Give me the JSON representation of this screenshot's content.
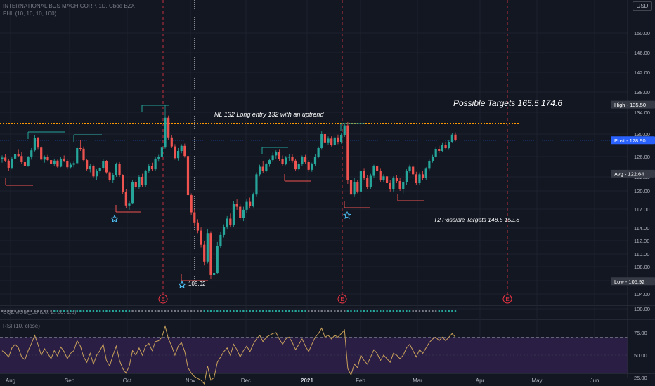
{
  "header": {
    "symbol_line": "INTERNATIONAL BUS MACH CORP, 1D, Cboe BZX",
    "indicator_1": "PHL (10, 10, 10, 100)",
    "indicator_2": "SQZMOM_LB (20, 2, 20, 1.5)",
    "indicator_3": "RSI (10, close)"
  },
  "currency_label": "USD",
  "annotations": {
    "neckline": "NL 132  Long entry 132 with an uptrend",
    "targets_main": "Possible Targets  165.5  174.6",
    "targets_t2": "T2   Possible Targets  148.5   152.8",
    "low_marker": "105.92"
  },
  "earnings_marker": "E",
  "price_tags": {
    "high": {
      "label": "High",
      "value": "135.50"
    },
    "post": {
      "label": "Post",
      "value": "128.90"
    },
    "avg": {
      "label": "Avg",
      "value": "122.64"
    },
    "low": {
      "label": "Low",
      "value": "105.92"
    }
  },
  "colors": {
    "background": "#131722",
    "up": "#26a69a",
    "down": "#ef5350",
    "rsi_line": "#c9a15a",
    "rsi_band": "#2a1e45",
    "neckline": "#ff9800",
    "post_line": "#2962ff",
    "earnings": "#f23645"
  },
  "chart_data": {
    "type": "candlestick",
    "price_axis_ticks": [
      "150.00",
      "146.00",
      "142.00",
      "138.00",
      "134.00",
      "130.00",
      "126.00",
      "122.00",
      "120.00",
      "117.00",
      "114.00",
      "112.00",
      "110.00",
      "108.00",
      "106.00",
      "104.00",
      "100.00"
    ],
    "rsi_axis_ticks": [
      "75.00",
      "50.00",
      "25.00"
    ],
    "time_axis_ticks": [
      "Aug",
      "Sep",
      "Oct",
      "Nov",
      "Dec",
      "2021",
      "Feb",
      "Mar",
      "Apr",
      "May",
      "Jun"
    ],
    "neckline": 132,
    "post_price": 128.9,
    "high": 135.5,
    "low": 105.92,
    "avg": 122.64,
    "rsi_levels": [
      70,
      30
    ],
    "ohlc": [
      [
        125.5,
        126.2,
        124.8,
        125.8
      ],
      [
        125.8,
        126.5,
        124.9,
        125.2
      ],
      [
        125.2,
        125.6,
        123.2,
        123.8
      ],
      [
        123.8,
        126.0,
        123.5,
        125.6
      ],
      [
        125.6,
        127.0,
        125.0,
        126.5
      ],
      [
        126.5,
        127.2,
        125.9,
        126.1
      ],
      [
        126.1,
        126.8,
        124.5,
        124.9
      ],
      [
        124.9,
        125.5,
        123.8,
        124.2
      ],
      [
        124.2,
        126.1,
        124.0,
        125.9
      ],
      [
        125.9,
        127.5,
        125.4,
        127.1
      ],
      [
        127.1,
        129.8,
        126.9,
        129.3
      ],
      [
        129.3,
        129.5,
        127.2,
        127.6
      ],
      [
        127.6,
        127.9,
        125.1,
        125.4
      ],
      [
        125.4,
        126.2,
        124.8,
        125.9
      ],
      [
        125.9,
        126.3,
        125.0,
        125.3
      ],
      [
        125.3,
        125.8,
        124.1,
        124.5
      ],
      [
        124.5,
        125.6,
        124.2,
        125.2
      ],
      [
        125.2,
        125.4,
        123.8,
        124.0
      ],
      [
        124.0,
        125.9,
        123.9,
        125.6
      ],
      [
        125.6,
        126.2,
        124.9,
        125.1
      ],
      [
        125.1,
        125.5,
        123.5,
        123.9
      ],
      [
        123.9,
        124.8,
        123.6,
        124.4
      ],
      [
        124.4,
        125.0,
        123.9,
        124.7
      ],
      [
        124.7,
        127.8,
        124.5,
        127.5
      ],
      [
        127.5,
        129.0,
        127.0,
        127.4
      ],
      [
        127.4,
        127.8,
        125.0,
        125.3
      ],
      [
        125.3,
        125.6,
        123.2,
        123.5
      ],
      [
        123.5,
        124.6,
        122.9,
        124.2
      ],
      [
        124.2,
        124.4,
        121.8,
        122.1
      ],
      [
        122.1,
        123.5,
        121.5,
        123.2
      ],
      [
        123.2,
        123.9,
        122.6,
        123.7
      ],
      [
        123.7,
        125.5,
        123.4,
        125.1
      ],
      [
        125.1,
        125.3,
        122.6,
        122.9
      ],
      [
        122.9,
        123.2,
        121.2,
        121.5
      ],
      [
        121.5,
        122.8,
        121.1,
        122.4
      ],
      [
        122.4,
        124.8,
        122.0,
        124.5
      ],
      [
        124.5,
        124.9,
        122.0,
        122.3
      ],
      [
        122.3,
        122.5,
        119.5,
        119.8
      ],
      [
        119.8,
        120.2,
        117.2,
        117.6
      ],
      [
        117.6,
        118.4,
        116.9,
        118.0
      ],
      [
        118.0,
        121.5,
        117.8,
        121.2
      ],
      [
        121.2,
        121.6,
        120.3,
        120.6
      ],
      [
        120.6,
        122.4,
        120.2,
        122.0
      ],
      [
        122.0,
        122.6,
        120.6,
        120.9
      ],
      [
        120.9,
        123.4,
        120.6,
        123.1
      ],
      [
        123.1,
        124.6,
        122.8,
        124.2
      ],
      [
        124.2,
        124.8,
        123.1,
        123.5
      ],
      [
        123.5,
        126.0,
        123.2,
        125.6
      ],
      [
        125.6,
        126.3,
        125.0,
        125.9
      ],
      [
        125.9,
        127.9,
        125.5,
        127.6
      ],
      [
        127.6,
        135.5,
        127.4,
        133.0
      ],
      [
        133.0,
        133.4,
        129.0,
        129.4
      ],
      [
        129.4,
        129.8,
        127.5,
        127.8
      ],
      [
        127.8,
        128.2,
        125.4,
        125.7
      ],
      [
        125.7,
        127.5,
        125.2,
        127.0
      ],
      [
        127.0,
        128.2,
        126.6,
        127.9
      ],
      [
        127.9,
        128.3,
        125.8,
        126.1
      ],
      [
        126.1,
        126.4,
        118.8,
        119.3
      ],
      [
        119.3,
        119.6,
        116.0,
        116.5
      ],
      [
        116.5,
        117.0,
        114.3,
        114.8
      ],
      [
        114.8,
        115.4,
        113.2,
        113.6
      ],
      [
        113.6,
        114.1,
        111.0,
        111.4
      ],
      [
        111.4,
        111.9,
        108.2,
        108.8
      ],
      [
        108.8,
        113.8,
        108.5,
        113.2
      ],
      [
        113.2,
        113.5,
        106.2,
        106.8
      ],
      [
        106.8,
        107.6,
        105.9,
        107.1
      ],
      [
        107.1,
        111.8,
        106.9,
        111.2
      ],
      [
        111.2,
        113.4,
        110.9,
        112.9
      ],
      [
        112.9,
        114.6,
        112.5,
        114.2
      ],
      [
        114.2,
        115.9,
        113.8,
        115.5
      ],
      [
        115.5,
        116.3,
        114.1,
        114.5
      ],
      [
        114.5,
        118.3,
        114.2,
        117.9
      ],
      [
        117.9,
        118.6,
        116.9,
        117.4
      ],
      [
        117.4,
        117.9,
        115.2,
        115.6
      ],
      [
        115.6,
        117.4,
        115.1,
        116.9
      ],
      [
        116.9,
        118.6,
        116.4,
        118.2
      ],
      [
        118.2,
        118.9,
        117.1,
        117.5
      ],
      [
        117.5,
        119.7,
        117.3,
        119.4
      ],
      [
        119.4,
        122.9,
        119.1,
        122.5
      ],
      [
        122.5,
        124.4,
        122.1,
        124.0
      ],
      [
        124.0,
        125.1,
        122.8,
        123.2
      ],
      [
        123.2,
        124.8,
        122.9,
        124.5
      ],
      [
        124.5,
        125.6,
        124.0,
        125.3
      ],
      [
        125.3,
        126.7,
        124.9,
        126.2
      ],
      [
        126.2,
        127.1,
        125.6,
        126.8
      ],
      [
        126.8,
        127.2,
        125.1,
        125.5
      ],
      [
        125.5,
        126.2,
        124.2,
        124.6
      ],
      [
        124.6,
        126.1,
        124.3,
        125.8
      ],
      [
        125.8,
        126.4,
        125.1,
        126.0
      ],
      [
        126.0,
        126.5,
        124.8,
        125.2
      ],
      [
        125.2,
        125.6,
        123.1,
        123.5
      ],
      [
        123.5,
        124.9,
        123.2,
        124.6
      ],
      [
        124.6,
        126.2,
        124.2,
        125.9
      ],
      [
        125.9,
        126.3,
        124.6,
        124.9
      ],
      [
        124.9,
        125.3,
        123.0,
        123.4
      ],
      [
        123.4,
        124.8,
        123.0,
        124.5
      ],
      [
        124.5,
        126.4,
        124.1,
        126.0
      ],
      [
        126.0,
        127.8,
        125.7,
        127.5
      ],
      [
        127.5,
        130.5,
        127.2,
        130.0
      ],
      [
        130.0,
        130.4,
        128.0,
        128.4
      ],
      [
        128.4,
        129.6,
        128.0,
        129.2
      ],
      [
        129.2,
        129.6,
        127.8,
        128.1
      ],
      [
        128.1,
        129.8,
        127.9,
        129.4
      ],
      [
        129.4,
        129.9,
        128.2,
        128.6
      ],
      [
        128.6,
        130.1,
        128.3,
        129.8
      ],
      [
        129.8,
        132.0,
        129.5,
        131.6
      ],
      [
        131.6,
        132.2,
        121.0,
        121.6
      ],
      [
        121.6,
        122.2,
        118.9,
        119.4
      ],
      [
        119.4,
        121.8,
        119.1,
        121.3
      ],
      [
        121.3,
        121.6,
        119.6,
        119.9
      ],
      [
        119.9,
        123.6,
        119.6,
        123.2
      ],
      [
        123.2,
        123.6,
        121.6,
        121.9
      ],
      [
        121.9,
        122.4,
        120.2,
        120.6
      ],
      [
        120.6,
        122.6,
        120.3,
        122.2
      ],
      [
        122.2,
        124.4,
        121.9,
        124.1
      ],
      [
        124.1,
        124.6,
        122.8,
        123.2
      ],
      [
        123.2,
        123.6,
        121.2,
        121.6
      ],
      [
        121.6,
        122.5,
        121.2,
        122.1
      ],
      [
        122.1,
        122.6,
        120.8,
        121.1
      ],
      [
        121.1,
        121.5,
        119.9,
        120.2
      ],
      [
        120.2,
        122.1,
        119.9,
        121.8
      ],
      [
        121.8,
        122.3,
        121.1,
        121.4
      ],
      [
        121.4,
        121.8,
        120.0,
        120.3
      ],
      [
        120.3,
        121.5,
        119.6,
        121.2
      ],
      [
        121.2,
        123.5,
        120.9,
        123.1
      ],
      [
        123.1,
        124.4,
        122.8,
        124.0
      ],
      [
        124.0,
        124.4,
        122.1,
        122.5
      ],
      [
        122.5,
        123.0,
        120.8,
        121.1
      ],
      [
        121.1,
        122.9,
        120.8,
        122.5
      ],
      [
        122.5,
        123.1,
        121.6,
        121.9
      ],
      [
        121.9,
        123.9,
        121.6,
        123.6
      ],
      [
        123.6,
        125.4,
        123.3,
        125.1
      ],
      [
        125.1,
        126.3,
        124.8,
        126.0
      ],
      [
        126.0,
        127.6,
        125.8,
        127.3
      ],
      [
        127.3,
        127.9,
        126.6,
        127.0
      ],
      [
        127.0,
        128.4,
        126.8,
        128.1
      ],
      [
        128.1,
        128.6,
        127.2,
        127.5
      ],
      [
        127.5,
        128.9,
        127.2,
        128.6
      ],
      [
        128.6,
        130.2,
        128.4,
        129.9
      ],
      [
        129.9,
        130.3,
        128.7,
        128.9
      ]
    ],
    "rsi": [
      55,
      52,
      48,
      58,
      62,
      58,
      48,
      45,
      55,
      63,
      72,
      62,
      50,
      57,
      52,
      46,
      55,
      49,
      59,
      54,
      46,
      52,
      55,
      66,
      60,
      48,
      42,
      52,
      40,
      50,
      55,
      62,
      44,
      38,
      50,
      60,
      44,
      35,
      30,
      38,
      55,
      50,
      58,
      50,
      60,
      63,
      55,
      65,
      66,
      70,
      82,
      68,
      60,
      50,
      60,
      64,
      54,
      36,
      30,
      26,
      24,
      22,
      18,
      38,
      22,
      25,
      42,
      48,
      54,
      58,
      50,
      62,
      56,
      48,
      55,
      60,
      54,
      62,
      68,
      72,
      65,
      70,
      72,
      74,
      75,
      68,
      62,
      68,
      70,
      64,
      56,
      62,
      68,
      60,
      54,
      62,
      70,
      74,
      80,
      70,
      72,
      68,
      72,
      70,
      74,
      78,
      35,
      28,
      40,
      36,
      50,
      44,
      40,
      48,
      56,
      52,
      44,
      50,
      46,
      42,
      52,
      50,
      46,
      50,
      58,
      62,
      55,
      48,
      56,
      52,
      58,
      64,
      68,
      70,
      66,
      70,
      66,
      70,
      74,
      70
    ],
    "squeeze_on": [
      false,
      false,
      false,
      false,
      false,
      false,
      false,
      false,
      false,
      false,
      false,
      false,
      false,
      false,
      false,
      false,
      true,
      true,
      true,
      true,
      true,
      true,
      true,
      true,
      true,
      true,
      true,
      true,
      true,
      true,
      true,
      true,
      true,
      true,
      true,
      true,
      true,
      true,
      true,
      true,
      false,
      false,
      false,
      false,
      false,
      false,
      false,
      false,
      false,
      false,
      false,
      false,
      false,
      false,
      false,
      false,
      false,
      false,
      false,
      false,
      false,
      false,
      true,
      true,
      true,
      true,
      true,
      true,
      true,
      true,
      true,
      true,
      true,
      true,
      true,
      true,
      true,
      true,
      true,
      true,
      true,
      true,
      true,
      true,
      true,
      true,
      true,
      true,
      true,
      true,
      true,
      true,
      true,
      true,
      false,
      false,
      false,
      false,
      false,
      false,
      false,
      false,
      false,
      false,
      false,
      false,
      true,
      true,
      true,
      true,
      true,
      true,
      true,
      true,
      true,
      true,
      true,
      true,
      true,
      true,
      true,
      true,
      true,
      true,
      true,
      true,
      false,
      false,
      false,
      false,
      false,
      false,
      false,
      false,
      true,
      true,
      true,
      true,
      true,
      true
    ]
  }
}
